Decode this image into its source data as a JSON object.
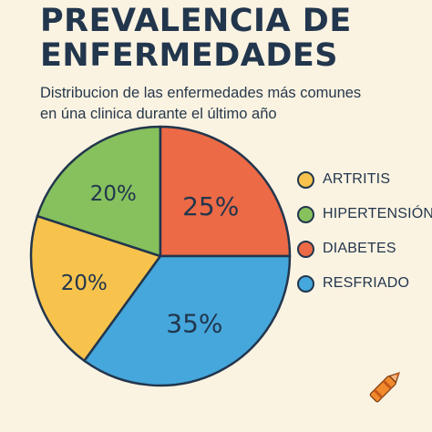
{
  "title_lines": [
    "PREVALENCIA DE",
    "ENFERMEDADES"
  ],
  "subtitle_lines": [
    "Distribucion de las enfermedades más comunes",
    "en úna clinica durante el último año"
  ],
  "chart_data": {
    "type": "pie",
    "title": "PREVALENCIA DE ENFERMEDADES",
    "subtitle": "Distribucion de las enfermedades más comunes en úna clinica durante el último año",
    "categories": [
      "ARTRITIS",
      "HIPERTENSIÓN",
      "DIABETES",
      "RESFRIADO"
    ],
    "values": [
      20,
      20,
      25,
      35
    ],
    "value_labels": [
      "20%",
      "20%",
      "25%",
      "35%"
    ],
    "colors": [
      "#f7c34c",
      "#86c15e",
      "#ec6a45",
      "#45a7dc"
    ],
    "legend_position": "right"
  }
}
